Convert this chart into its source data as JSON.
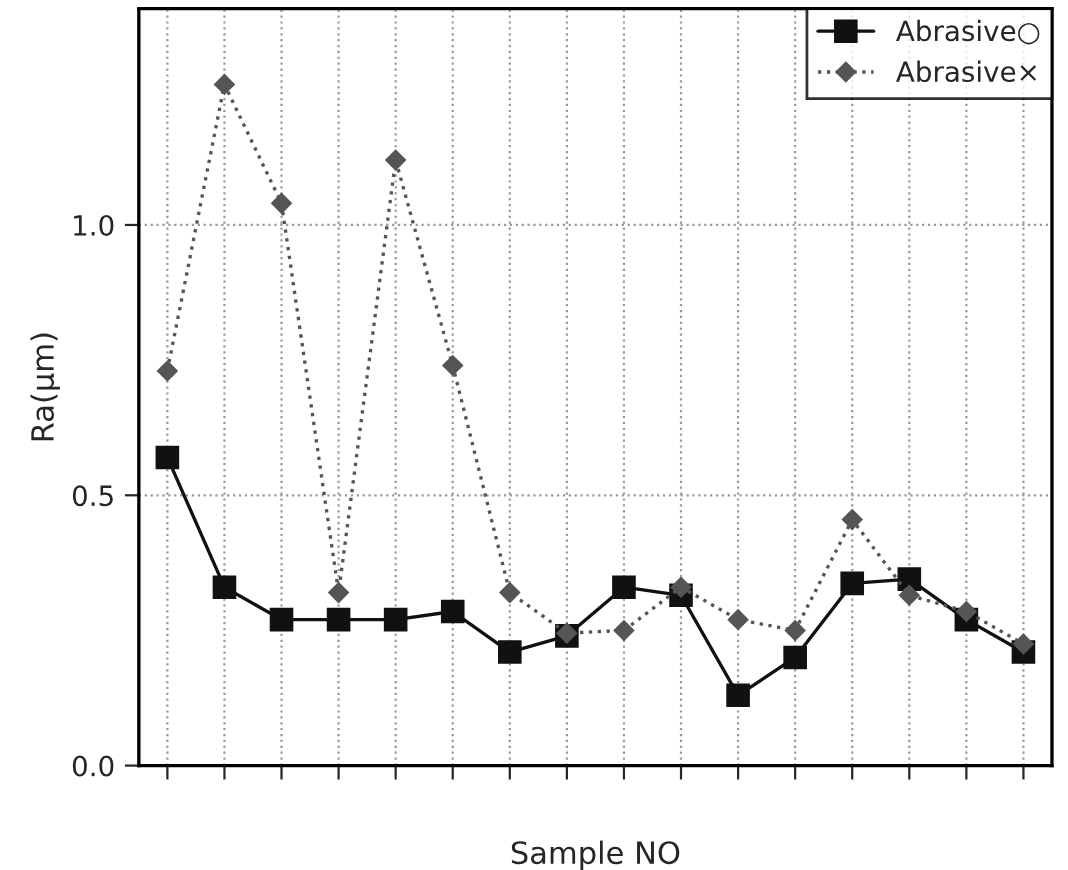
{
  "chart_data": {
    "type": "line",
    "xlabel": "Sample NO",
    "ylabel": "Ra(μm)",
    "categories": [
      null,
      null,
      null,
      null,
      null,
      null,
      null,
      null,
      null,
      null,
      null,
      null,
      null,
      null,
      null,
      null
    ],
    "ylim": [
      0,
      1.4
    ],
    "yticks": [
      {
        "value": 0,
        "label": "0.0"
      },
      {
        "value": 0.5,
        "label": "0.5"
      },
      {
        "value": 1.0,
        "label": "1.0"
      }
    ],
    "tick_labels": "y",
    "grid": true,
    "legend": "top right",
    "series": [
      {
        "name": "Abrasive○",
        "color": "#111111",
        "marker": "square",
        "line_style": "solid",
        "values": [
          0.57,
          0.33,
          0.27,
          0.27,
          0.27,
          0.285,
          0.21,
          0.24,
          0.33,
          0.315,
          0.13,
          0.2,
          0.337,
          0.345,
          0.27,
          0.21
        ]
      },
      {
        "name": "Abrasive×",
        "color": "#555555",
        "marker": "diamond",
        "line_style": "dotted",
        "values": [
          0.73,
          1.26,
          1.04,
          0.32,
          1.12,
          0.74,
          0.32,
          0.245,
          0.25,
          0.33,
          0.27,
          0.25,
          0.455,
          0.315,
          0.285,
          0.225
        ]
      }
    ]
  }
}
